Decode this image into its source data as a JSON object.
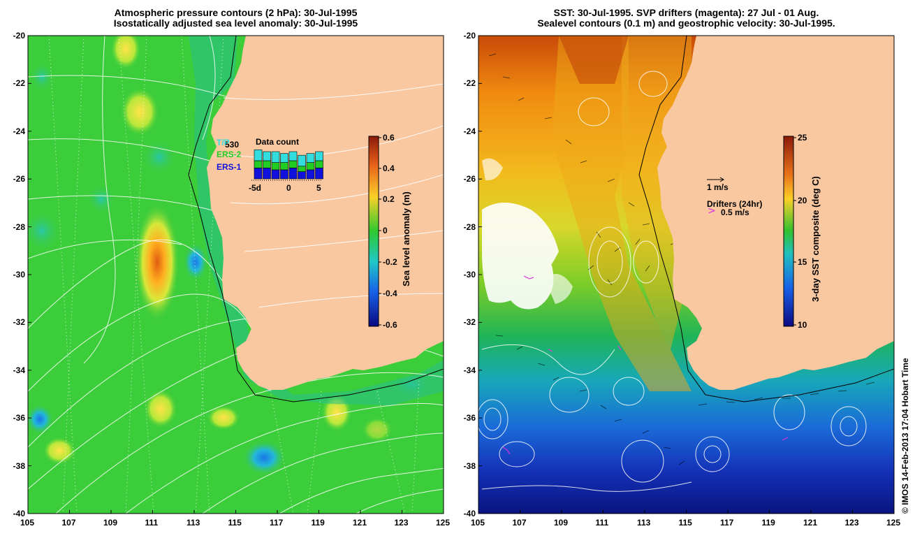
{
  "left_panel": {
    "title_line1": "Atmospheric pressure contours (2 hPa): 30-Jul-1995",
    "title_line2": "Isostatically adjusted sea level anomaly: 30-Jul-1995",
    "colorbar_label": "Sea level anomaly (m)",
    "colorbar_ticks": [
      "0.6",
      "0.4",
      "0.2",
      "0",
      "-0.2",
      "-0.4",
      "-0.6"
    ],
    "inset": {
      "title": "Data count",
      "count": "530",
      "legend": [
        "T/P",
        "ERS-2",
        "ERS-1"
      ],
      "legend_colors": [
        "#33dddd",
        "#22cc22",
        "#1111dd"
      ],
      "x_ticks": [
        "-5d",
        "0",
        "5"
      ],
      "bars": [
        {
          "tp": 6,
          "ers2": 4,
          "ers1": 6
        },
        {
          "tp": 5,
          "ers2": 4,
          "ers1": 6
        },
        {
          "tp": 6,
          "ers2": 4,
          "ers1": 5
        },
        {
          "tp": 5,
          "ers2": 4,
          "ers1": 5
        },
        {
          "tp": 5,
          "ers2": 4,
          "ers1": 6
        },
        {
          "tp": 6,
          "ers2": 3,
          "ers1": 4
        },
        {
          "tp": 5,
          "ers2": 4,
          "ers1": 5
        },
        {
          "tp": 5,
          "ers2": 4,
          "ers1": 6
        }
      ]
    }
  },
  "right_panel": {
    "title_line1": "SST: 30-Jul-1995. SVP drifters (magenta): 27 Jul - 01 Aug.",
    "title_line2": "Sealevel contours (0.1 m) and geostrophic velocity: 30-Jul-1995.",
    "colorbar_label": "3-day SST composite (deg C)",
    "colorbar_ticks": [
      "25",
      "20",
      "15",
      "10"
    ],
    "velocity_scale": "1 m/s",
    "drifters_label": "Drifters (24hr)",
    "drifters_scale": "0.5 m/s"
  },
  "axes": {
    "x_ticks": [
      "105",
      "107",
      "109",
      "111",
      "113",
      "115",
      "117",
      "119",
      "121",
      "123",
      "125"
    ],
    "y_ticks": [
      "-20",
      "-22",
      "-24",
      "-26",
      "-28",
      "-30",
      "-32",
      "-34",
      "-36",
      "-38",
      "-40"
    ]
  },
  "colors": {
    "land": "#f9c8a0",
    "ocean_mid": "#2ec82e",
    "contour": "#ffffff"
  },
  "credit": "© IMOS 14-Feb-2013 17:04 Hobart Time"
}
